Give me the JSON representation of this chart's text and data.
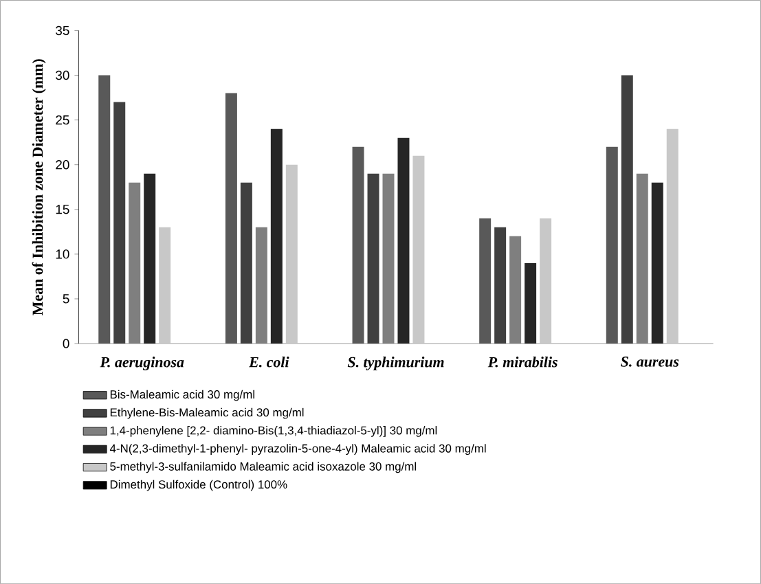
{
  "chart_data": {
    "type": "bar",
    "ylabel": "Mean of Inhibition zone Diameter (mm)",
    "categories": [
      "P. aeruginosa",
      "E. coli",
      "S. typhimurium",
      "P. mirabilis",
      "S. aureus"
    ],
    "series": [
      {
        "name": "Bis-Maleamic acid 30 mg/ml",
        "color": "#595959",
        "values": [
          30,
          28,
          22,
          14,
          22
        ]
      },
      {
        "name": "Ethylene-Bis-Maleamic acid 30 mg/ml",
        "color": "#404040",
        "values": [
          27,
          18,
          19,
          13,
          30
        ]
      },
      {
        "name": "1,4-phenylene [2,2- diamino-Bis(1,3,4-thiadiazol-5-yl)] 30 mg/ml",
        "color": "#7f7f7f",
        "values": [
          18,
          13,
          19,
          12,
          19
        ]
      },
      {
        "name": "4-N(2,3-dimethyl-1-phenyl- pyrazolin-5-one-4-yl) Maleamic acid 30 mg/ml",
        "color": "#262626",
        "values": [
          19,
          24,
          23,
          9,
          18
        ]
      },
      {
        "name": "5-methyl-3-sulfanilamido Maleamic acid isoxazole 30 mg/ml",
        "color": "#c8c8c8",
        "values": [
          13,
          20,
          21,
          14,
          24
        ]
      },
      {
        "name": "Dimethyl Sulfoxide (Control) 100%",
        "color": "#000000",
        "values": [
          0,
          0,
          0,
          0,
          0
        ]
      }
    ],
    "ylim": [
      0,
      35
    ],
    "yticks": [
      0,
      5,
      10,
      15,
      20,
      25,
      30,
      35
    ],
    "grid": false,
    "legend": "bottom"
  }
}
